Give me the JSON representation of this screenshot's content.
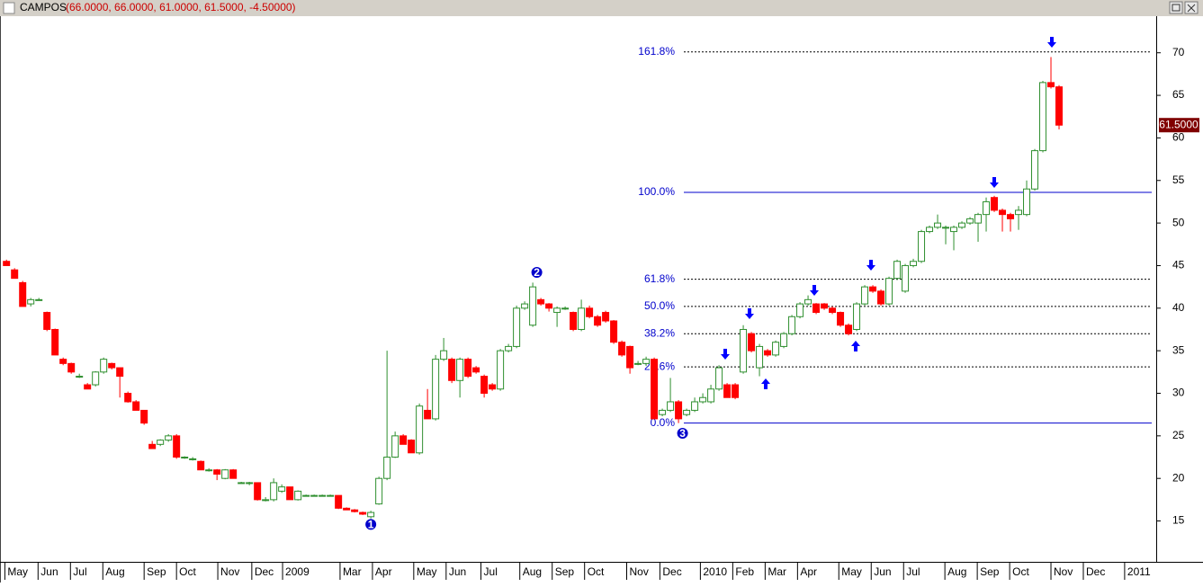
{
  "chart_data": {
    "type": "candlestick",
    "title": "CAMPOS",
    "subtitle": "(66.0000, 66.0000, 61.0000, 61.5000, -4.50000)",
    "last_price_label": "61.5000",
    "last_price": 61.5,
    "up_color": "#2f8f2f",
    "down_color": "#ff0000",
    "level_color": "#0000cc",
    "ylim": [
      10.2,
      74.3
    ],
    "yticks": [
      15,
      20,
      25,
      30,
      35,
      40,
      45,
      50,
      55,
      60,
      65,
      70
    ],
    "xlim": [
      -0.8,
      142
    ],
    "xticks": [
      {
        "value": -0.2,
        "label": "May"
      },
      {
        "value": 3.9,
        "label": "Jun"
      },
      {
        "value": 7.9,
        "label": "Jul"
      },
      {
        "value": 11.9,
        "label": "Aug"
      },
      {
        "value": 17,
        "label": "Sep"
      },
      {
        "value": 21,
        "label": "Oct"
      },
      {
        "value": 26.1,
        "label": "Nov"
      },
      {
        "value": 30.3,
        "label": "Dec"
      },
      {
        "value": 34.1,
        "label": "2009"
      },
      {
        "value": 41.2,
        "label": "Mar"
      },
      {
        "value": 45.2,
        "label": "Apr"
      },
      {
        "value": 50.3,
        "label": "May"
      },
      {
        "value": 54.3,
        "label": "Jun"
      },
      {
        "value": 58.6,
        "label": "Jul"
      },
      {
        "value": 63.4,
        "label": "Aug"
      },
      {
        "value": 67.4,
        "label": "Sep"
      },
      {
        "value": 71.4,
        "label": "Oct"
      },
      {
        "value": 76.6,
        "label": "Nov"
      },
      {
        "value": 80.7,
        "label": "Dec"
      },
      {
        "value": 85.7,
        "label": "2010"
      },
      {
        "value": 89.7,
        "label": "Feb"
      },
      {
        "value": 93.7,
        "label": "Mar"
      },
      {
        "value": 97.7,
        "label": "Apr"
      },
      {
        "value": 102.8,
        "label": "May"
      },
      {
        "value": 106.8,
        "label": "Jun"
      },
      {
        "value": 110.8,
        "label": "Jul"
      },
      {
        "value": 115.9,
        "label": "Aug"
      },
      {
        "value": 119.9,
        "label": "Sep"
      },
      {
        "value": 123.9,
        "label": "Oct"
      },
      {
        "value": 129,
        "label": "Nov"
      },
      {
        "value": 133,
        "label": "Dec"
      },
      {
        "value": 138.1,
        "label": "2011"
      }
    ],
    "levels": [
      {
        "label": "161.8%",
        "value": 70.1,
        "dashed": true
      },
      {
        "label": "100.0%",
        "value": 53.6,
        "dashed": false
      },
      {
        "label": "61.8%",
        "value": 43.4,
        "dashed": true
      },
      {
        "label": "50.0%",
        "value": 40.2,
        "dashed": true
      },
      {
        "label": "38.2%",
        "value": 37.0,
        "dashed": true
      },
      {
        "label": "23.6%",
        "value": 33.1,
        "dashed": true
      },
      {
        "label": "0.0%",
        "value": 26.5,
        "dashed": false
      }
    ],
    "annotations": [
      {
        "text": "1",
        "x": 45,
        "y": 14.6
      },
      {
        "text": "2",
        "x": 65.5,
        "y": 44.2
      },
      {
        "text": "3",
        "x": 83.5,
        "y": 25.3
      }
    ],
    "candles": [
      [
        45.5,
        45.7,
        45,
        45
      ],
      [
        44.5,
        44.7,
        43.5,
        43.5
      ],
      [
        43,
        43.2,
        40.2,
        40.2
      ],
      [
        40.5,
        41.2,
        40.2,
        41
      ],
      [
        41,
        41.2,
        41,
        41
      ],
      [
        39.5,
        39.6,
        37.3,
        37.5
      ],
      [
        37.5,
        37.6,
        34.5,
        34.5
      ],
      [
        34,
        34.2,
        33.3,
        33.5
      ],
      [
        33.5,
        33.6,
        32.3,
        32.5
      ],
      [
        32,
        32.3,
        31.8,
        32
      ],
      [
        31,
        31.2,
        30.5,
        30.5
      ],
      [
        31,
        32.6,
        30.8,
        32.5
      ],
      [
        32.5,
        34.2,
        32.3,
        34
      ],
      [
        33.5,
        33.6,
        32.8,
        33
      ],
      [
        33,
        33,
        29.5,
        32
      ],
      [
        30,
        30.2,
        28.9,
        29
      ],
      [
        29,
        29.2,
        28,
        28
      ],
      [
        28,
        28,
        26.3,
        26.5
      ],
      [
        24,
        24.4,
        23.5,
        23.5
      ],
      [
        24,
        24.6,
        23.8,
        24.5
      ],
      [
        24.5,
        25.2,
        24.3,
        25
      ],
      [
        25,
        25.2,
        22.3,
        22.5
      ],
      [
        22.5,
        22.6,
        22.3,
        22.5
      ],
      [
        22.3,
        22.5,
        22.1,
        22.3
      ],
      [
        22,
        22.1,
        21,
        21
      ],
      [
        21,
        21.2,
        20.8,
        21
      ],
      [
        21,
        21.1,
        19.8,
        20.5
      ],
      [
        20,
        21.1,
        19.9,
        21
      ],
      [
        21,
        21.1,
        20,
        20
      ],
      [
        19.5,
        19.6,
        19.4,
        19.5
      ],
      [
        19.5,
        19.6,
        19.2,
        19.5
      ],
      [
        19.5,
        19.5,
        17.4,
        17.5
      ],
      [
        17.5,
        17.8,
        17.3,
        17.5
      ],
      [
        17.5,
        20,
        17.3,
        19.5
      ],
      [
        18.5,
        19.3,
        18.3,
        19
      ],
      [
        19,
        19,
        17.5,
        17.5
      ],
      [
        17.5,
        18.6,
        17.4,
        18.5
      ],
      [
        18,
        18.1,
        18,
        18
      ],
      [
        18,
        18.1,
        18,
        18
      ],
      [
        18,
        18.1,
        18,
        18
      ],
      [
        18,
        18.1,
        18,
        18
      ],
      [
        18,
        18,
        16.4,
        16.5
      ],
      [
        16.5,
        16.6,
        16.3,
        16.3
      ],
      [
        16.3,
        16.4,
        16,
        16.1
      ],
      [
        16,
        16.1,
        15.7,
        15.8
      ],
      [
        15.5,
        16.2,
        15.3,
        16
      ],
      [
        17,
        20.2,
        16.9,
        20
      ],
      [
        20,
        35,
        19.8,
        22.5
      ],
      [
        22.5,
        25.5,
        22.4,
        25
      ],
      [
        25,
        25.2,
        24,
        24
      ],
      [
        24.5,
        24.6,
        23,
        23
      ],
      [
        23,
        28.8,
        22.8,
        28.5
      ],
      [
        28,
        30.5,
        27,
        27
      ],
      [
        27,
        34.5,
        26.8,
        34
      ],
      [
        34,
        36.5,
        33.8,
        35
      ],
      [
        34,
        34.2,
        31.2,
        31.5
      ],
      [
        31.5,
        34.2,
        29.5,
        34
      ],
      [
        34,
        34.2,
        31.8,
        32
      ],
      [
        33,
        33.2,
        32.3,
        32.5
      ],
      [
        32,
        32.2,
        29.5,
        30
      ],
      [
        31,
        31.2,
        30.3,
        30.5
      ],
      [
        30.5,
        35.2,
        30.3,
        35
      ],
      [
        35,
        35.8,
        34.8,
        35.5
      ],
      [
        35.5,
        40.3,
        35.3,
        40
      ],
      [
        40,
        40.8,
        39.8,
        40.5
      ],
      [
        38,
        43,
        37.8,
        42.5
      ],
      [
        41,
        41.2,
        40.3,
        40.5
      ],
      [
        40.5,
        40.6,
        39.6,
        40
      ],
      [
        39.5,
        40.2,
        37.8,
        40
      ],
      [
        40,
        40.2,
        39.8,
        40
      ],
      [
        39.5,
        39.6,
        37.3,
        37.5
      ],
      [
        37.5,
        41,
        37.3,
        40
      ],
      [
        40,
        40.3,
        38.8,
        39
      ],
      [
        39,
        39.2,
        37.8,
        38
      ],
      [
        39.5,
        39.7,
        38.3,
        38.5
      ],
      [
        38.5,
        38.6,
        35.8,
        36
      ],
      [
        36,
        36.2,
        34.3,
        34.5
      ],
      [
        35.5,
        35.6,
        32.3,
        33
      ],
      [
        33.5,
        33.8,
        33.3,
        33.5
      ],
      [
        33.5,
        34.3,
        33.2,
        34
      ],
      [
        34,
        34.2,
        27,
        27
      ],
      [
        27.5,
        28.2,
        27.3,
        28
      ],
      [
        28,
        31.8,
        27.8,
        29
      ],
      [
        29,
        29.2,
        26.5,
        27
      ],
      [
        27.5,
        28.2,
        27.3,
        28
      ],
      [
        28,
        29.5,
        27.8,
        29
      ],
      [
        29,
        30,
        28.8,
        29.5
      ],
      [
        29,
        31,
        28.8,
        30.5
      ],
      [
        30.5,
        33.3,
        30.3,
        33
      ],
      [
        31,
        31.2,
        29.5,
        29.5
      ],
      [
        31,
        31.2,
        29.3,
        29.5
      ],
      [
        32.5,
        38,
        32.3,
        37.5
      ],
      [
        37,
        37.2,
        34.8,
        35
      ],
      [
        33,
        35.8,
        32,
        35.5
      ],
      [
        35,
        35.2,
        34.3,
        34.5
      ],
      [
        34.5,
        36.2,
        34.3,
        36
      ],
      [
        35.5,
        37.2,
        35.3,
        37
      ],
      [
        37,
        39.2,
        36.8,
        39
      ],
      [
        39,
        40.7,
        38.8,
        40.5
      ],
      [
        40.5,
        41.5,
        40.3,
        41
      ],
      [
        40.5,
        40.6,
        39.3,
        39.5
      ],
      [
        40.5,
        40.6,
        39.8,
        40
      ],
      [
        40,
        40.2,
        39.3,
        39.5
      ],
      [
        39.5,
        39.6,
        37.8,
        38
      ],
      [
        38,
        38.2,
        36.8,
        37
      ],
      [
        37.5,
        40.7,
        37.3,
        40.5
      ],
      [
        40.5,
        42.7,
        40.3,
        42.5
      ],
      [
        42.5,
        42.7,
        41.8,
        42
      ],
      [
        42,
        42.2,
        40.3,
        40.5
      ],
      [
        40.5,
        43.7,
        40.3,
        43.5
      ],
      [
        43.5,
        45.7,
        43.3,
        45.5
      ],
      [
        42,
        45.2,
        41.8,
        45
      ],
      [
        45,
        45.8,
        44.8,
        45.5
      ],
      [
        45.5,
        49.2,
        45.3,
        49
      ],
      [
        49,
        49.7,
        48.8,
        49.5
      ],
      [
        49.5,
        51,
        49.3,
        50
      ],
      [
        49.5,
        49.7,
        47.5,
        49.5
      ],
      [
        49,
        49.7,
        46.8,
        49.5
      ],
      [
        49.5,
        50.2,
        49.3,
        50
      ],
      [
        50,
        50.7,
        49.8,
        50.5
      ],
      [
        50,
        51.2,
        47.8,
        51
      ],
      [
        51,
        53,
        49,
        52.5
      ],
      [
        53,
        53.2,
        51.3,
        51.5
      ],
      [
        51.5,
        51.7,
        49,
        51
      ],
      [
        51,
        51.2,
        49,
        50.5
      ],
      [
        51,
        52,
        49.2,
        51.5
      ],
      [
        51,
        55,
        50.8,
        54
      ],
      [
        54,
        58.7,
        53.8,
        58.5
      ],
      [
        58.5,
        66.7,
        58.3,
        66.5
      ],
      [
        66.5,
        69.5,
        65.8,
        66
      ],
      [
        66,
        66.2,
        61,
        61.5
      ]
    ]
  }
}
